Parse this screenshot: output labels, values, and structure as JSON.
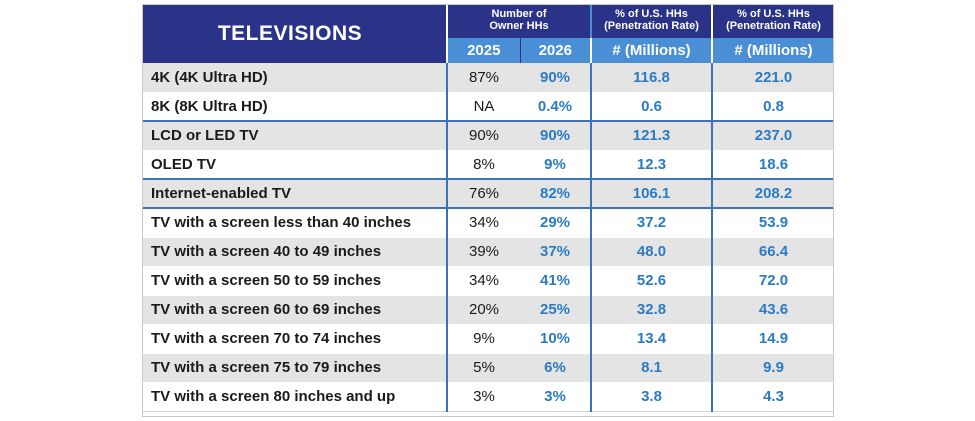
{
  "chart_data": {
    "type": "table",
    "title": "TELEVISIONS",
    "column_groups": [
      {
        "label": "Number of Owner HHs",
        "line1": "Number of",
        "line2": "Owner HHs"
      },
      {
        "label": "% of U.S. HHs (Penetration Rate)",
        "line1": "% of U.S. HHs",
        "line2": "(Penetration Rate)"
      },
      {
        "label": "% of U.S. HHs (Penetration Rate)",
        "line1": "% of U.S. HHs",
        "line2": "(Penetration Rate)"
      }
    ],
    "columns": [
      "2025",
      "2026",
      "# (Millions)",
      "# (Millions)"
    ],
    "rows": [
      {
        "label": "4K (4K Ultra HD)",
        "values": [
          "87%",
          "90%",
          "116.8",
          "221.0"
        ],
        "shade": true,
        "group_start": false
      },
      {
        "label": "8K (8K Ultra HD)",
        "values": [
          "NA",
          "0.4%",
          "0.6",
          "0.8"
        ],
        "shade": false,
        "group_start": false
      },
      {
        "label": "LCD or LED TV",
        "values": [
          "90%",
          "90%",
          "121.3",
          "237.0"
        ],
        "shade": true,
        "group_start": true
      },
      {
        "label": "OLED TV",
        "values": [
          "8%",
          "9%",
          "12.3",
          "18.6"
        ],
        "shade": false,
        "group_start": false
      },
      {
        "label": "Internet-enabled TV",
        "values": [
          "76%",
          "82%",
          "106.1",
          "208.2"
        ],
        "shade": true,
        "group_start": true
      },
      {
        "label": "TV with a screen less than 40 inches",
        "values": [
          "34%",
          "29%",
          "37.2",
          "53.9"
        ],
        "shade": false,
        "group_start": true
      },
      {
        "label": "TV with a screen 40 to 49 inches",
        "values": [
          "39%",
          "37%",
          "48.0",
          "66.4"
        ],
        "shade": true,
        "group_start": false
      },
      {
        "label": "TV with a screen 50 to 59 inches",
        "values": [
          "34%",
          "41%",
          "52.6",
          "72.0"
        ],
        "shade": false,
        "group_start": false
      },
      {
        "label": "TV with a screen 60 to 69 inches",
        "values": [
          "20%",
          "25%",
          "32.8",
          "43.6"
        ],
        "shade": true,
        "group_start": false
      },
      {
        "label": "TV with a screen 70 to 74 inches",
        "values": [
          "9%",
          "10%",
          "13.4",
          "14.9"
        ],
        "shade": false,
        "group_start": false
      },
      {
        "label": "TV with a screen 75 to 79 inches",
        "values": [
          "5%",
          "6%",
          "8.1",
          "9.9"
        ],
        "shade": true,
        "group_start": false
      },
      {
        "label": "TV with a screen 80 inches and up",
        "values": [
          "3%",
          "3%",
          "3.8",
          "4.3"
        ],
        "shade": false,
        "group_start": false
      }
    ]
  },
  "colors": {
    "header_dark": "#2a3388",
    "header_light": "#4a8fd6",
    "value_blue": "#2a7bc4",
    "row_shade": "#e4e4e5",
    "divider": "#3a73b8"
  }
}
